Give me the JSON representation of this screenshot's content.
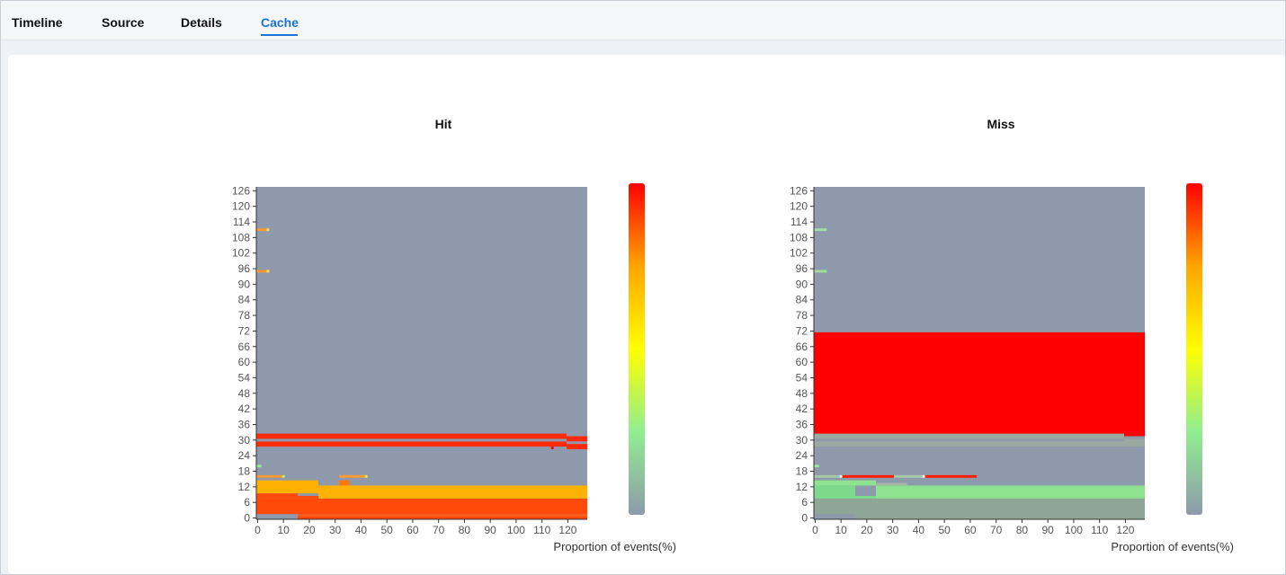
{
  "tabs": [
    {
      "label": "Timeline"
    },
    {
      "label": "Source"
    },
    {
      "label": "Details"
    },
    {
      "label": "Cache"
    }
  ],
  "active_tab": "Cache",
  "colors": {
    "accent": "#1a73d9",
    "empty_cell": "#8e9aab",
    "scale": [
      "#8e9aab",
      "#90ee90",
      "#ffff00",
      "#ffa500",
      "#ff0000"
    ]
  },
  "chart_data": [
    {
      "type": "heatmap",
      "title": "Hit",
      "xlabel": "Proportion of events(%)",
      "ylabel": "",
      "x_ticks": [
        0,
        10,
        20,
        30,
        40,
        50,
        60,
        70,
        80,
        90,
        100,
        110,
        120
      ],
      "y_ticks": [
        0,
        6,
        12,
        18,
        24,
        30,
        36,
        42,
        48,
        54,
        60,
        66,
        72,
        78,
        84,
        90,
        96,
        102,
        108,
        114,
        120,
        126
      ],
      "xlim": [
        0,
        128
      ],
      "ylim": [
        0,
        128
      ],
      "visual_map": {
        "orient": "vertical",
        "colors": [
          "#8e9aab",
          "#90ee90",
          "#ffff00",
          "#ffa500",
          "#ff0000"
        ]
      },
      "cells": [
        {
          "x": [
            0,
            16
          ],
          "y": [
            0,
            2
          ],
          "color": "#8e9aab"
        },
        {
          "x": [
            16,
            128
          ],
          "y": [
            0,
            1
          ],
          "color": "#ff4500"
        },
        {
          "x": [
            16,
            128
          ],
          "y": [
            1,
            2
          ],
          "color": "#ff5a1a"
        },
        {
          "x": [
            0,
            128
          ],
          "y": [
            2,
            8
          ],
          "color": "#ff4a0a"
        },
        {
          "x": [
            0,
            16
          ],
          "y": [
            8,
            10
          ],
          "color": "#ff4a0a"
        },
        {
          "x": [
            16,
            24
          ],
          "y": [
            8,
            9
          ],
          "color": "#ff4a0a"
        },
        {
          "x": [
            16,
            24
          ],
          "y": [
            9,
            10
          ],
          "color": "#8e9aab"
        },
        {
          "x": [
            24,
            128
          ],
          "y": [
            8,
            10
          ],
          "color": "#ffb300"
        },
        {
          "x": [
            0,
            128
          ],
          "y": [
            10,
            13
          ],
          "color": "#ffb300"
        },
        {
          "x": [
            0,
            24
          ],
          "y": [
            13,
            15
          ],
          "color": "#ffb300"
        },
        {
          "x": [
            32,
            36
          ],
          "y": [
            13,
            15
          ],
          "color": "#ff7700"
        },
        {
          "x": [
            0,
            10
          ],
          "y": [
            16,
            17
          ],
          "color": "#ff9933"
        },
        {
          "x": [
            10,
            11
          ],
          "y": [
            16,
            17
          ],
          "color": "#bfef6a"
        },
        {
          "x": [
            32,
            42
          ],
          "y": [
            16,
            17
          ],
          "color": "#ff9933"
        },
        {
          "x": [
            42,
            43
          ],
          "y": [
            16,
            17
          ],
          "color": "#dfef5a"
        },
        {
          "x": [
            0,
            2
          ],
          "y": [
            20,
            21
          ],
          "color": "#90ee90"
        },
        {
          "x": [
            0,
            120
          ],
          "y": [
            28,
            30
          ],
          "color": "#ff2a0a"
        },
        {
          "x": [
            114,
            115
          ],
          "y": [
            27,
            28
          ],
          "color": "#ff0000"
        },
        {
          "x": [
            120,
            128
          ],
          "y": [
            27,
            29
          ],
          "color": "#ff2a0a"
        },
        {
          "x": [
            0,
            120
          ],
          "y": [
            30,
            31
          ],
          "color": "#8e9aab"
        },
        {
          "x": [
            0,
            120
          ],
          "y": [
            31,
            33
          ],
          "color": "#ff2a0a"
        },
        {
          "x": [
            120,
            128
          ],
          "y": [
            30,
            32
          ],
          "color": "#ff2a0a"
        },
        {
          "x": [
            0,
            4
          ],
          "y": [
            95,
            96
          ],
          "color": "#ff9933"
        },
        {
          "x": [
            4,
            5
          ],
          "y": [
            95,
            96
          ],
          "color": "#ffe066"
        },
        {
          "x": [
            0,
            4
          ],
          "y": [
            111,
            112
          ],
          "color": "#ff9933"
        },
        {
          "x": [
            4,
            5
          ],
          "y": [
            111,
            112
          ],
          "color": "#ffe066"
        }
      ]
    },
    {
      "type": "heatmap",
      "title": "Miss",
      "xlabel": "Proportion of events(%)",
      "ylabel": "",
      "x_ticks": [
        0,
        10,
        20,
        30,
        40,
        50,
        60,
        70,
        80,
        90,
        100,
        110,
        120
      ],
      "y_ticks": [
        0,
        6,
        12,
        18,
        24,
        30,
        36,
        42,
        48,
        54,
        60,
        66,
        72,
        78,
        84,
        90,
        96,
        102,
        108,
        114,
        120,
        126
      ],
      "xlim": [
        0,
        128
      ],
      "ylim": [
        0,
        128
      ],
      "visual_map": {
        "orient": "vertical",
        "colors": [
          "#8e9aab",
          "#90ee90",
          "#ffff00",
          "#ffa500",
          "#ff0000"
        ]
      },
      "cells": [
        {
          "x": [
            0,
            16
          ],
          "y": [
            0,
            2
          ],
          "color": "#8e9aab"
        },
        {
          "x": [
            16,
            128
          ],
          "y": [
            0,
            2
          ],
          "color": "#8fa596"
        },
        {
          "x": [
            0,
            128
          ],
          "y": [
            2,
            8
          ],
          "color": "#8fa596"
        },
        {
          "x": [
            0,
            16
          ],
          "y": [
            8,
            13
          ],
          "color": "#7fd98a"
        },
        {
          "x": [
            16,
            24
          ],
          "y": [
            8,
            9
          ],
          "color": "#7fd98a"
        },
        {
          "x": [
            16,
            24
          ],
          "y": [
            9,
            10
          ],
          "color": "#8e9aab"
        },
        {
          "x": [
            24,
            128
          ],
          "y": [
            8,
            13
          ],
          "color": "#8fe28f"
        },
        {
          "x": [
            0,
            24
          ],
          "y": [
            13,
            15
          ],
          "color": "#8fe28f"
        },
        {
          "x": [
            24,
            36
          ],
          "y": [
            13,
            14
          ],
          "color": "#a6b5a8"
        },
        {
          "x": [
            0,
            10
          ],
          "y": [
            16,
            17
          ],
          "color": "#a6c9a6"
        },
        {
          "x": [
            10,
            11
          ],
          "y": [
            16,
            17
          ],
          "color": "#ffffff"
        },
        {
          "x": [
            11,
            31
          ],
          "y": [
            16,
            17
          ],
          "color": "#ff1a00"
        },
        {
          "x": [
            31,
            42
          ],
          "y": [
            16,
            17
          ],
          "color": "#a6c9a6"
        },
        {
          "x": [
            42,
            43
          ],
          "y": [
            16,
            17
          ],
          "color": "#ffffff"
        },
        {
          "x": [
            43,
            63
          ],
          "y": [
            16,
            17
          ],
          "color": "#ff1a00"
        },
        {
          "x": [
            0,
            2
          ],
          "y": [
            20,
            21
          ],
          "color": "#90ee90"
        },
        {
          "x": [
            0,
            120
          ],
          "y": [
            28,
            33
          ],
          "color": "#9aa9a2"
        },
        {
          "x": [
            120,
            128
          ],
          "y": [
            28,
            31
          ],
          "color": "#9aa9a2"
        },
        {
          "x": [
            0,
            120
          ],
          "y": [
            30,
            31
          ],
          "color": "#8e9aab"
        },
        {
          "x": [
            0,
            120
          ],
          "y": [
            33,
            72
          ],
          "color": "#ff0000"
        },
        {
          "x": [
            120,
            128
          ],
          "y": [
            32,
            72
          ],
          "color": "#ff0000"
        },
        {
          "x": [
            0,
            4
          ],
          "y": [
            95,
            96
          ],
          "color": "#a6d9a6"
        },
        {
          "x": [
            4,
            5
          ],
          "y": [
            95,
            96
          ],
          "color": "#90ee90"
        },
        {
          "x": [
            0,
            4
          ],
          "y": [
            111,
            112
          ],
          "color": "#a6d9a6"
        },
        {
          "x": [
            4,
            5
          ],
          "y": [
            111,
            112
          ],
          "color": "#90ee90"
        }
      ]
    }
  ]
}
